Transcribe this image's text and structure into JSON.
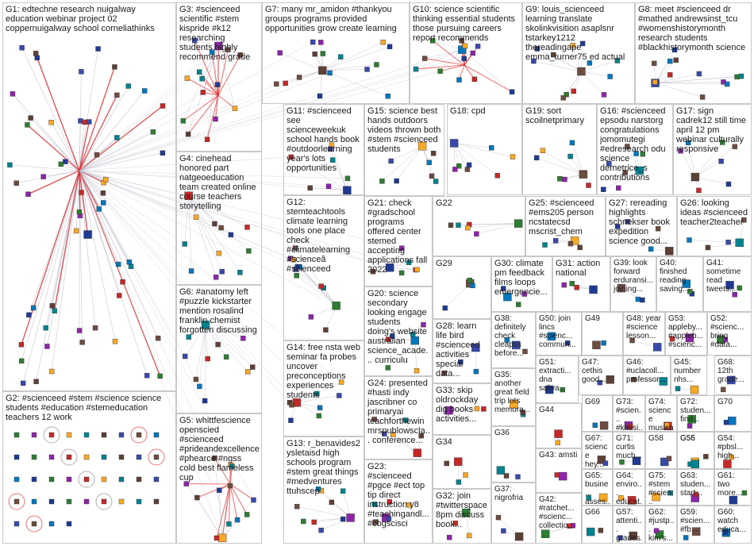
{
  "groups": [
    {
      "id": "G1",
      "text": "G1: edtechne research nuigalway education webinar project 02 coppernuigalway school corneliathinks"
    },
    {
      "id": "G2",
      "text": "G2: #scienceed #stem #science science students #education #stemeducation teachers 12 work"
    },
    {
      "id": "G3",
      "text": "G3: #scienceed scientific #stem kispride #k12 researching students highly recommend grade"
    },
    {
      "id": "G4",
      "text": "G4: cinehead honored part natgeoeducation team created online course teachers storytelling"
    },
    {
      "id": "G5",
      "text": "G5: whittfescience openscied #scienceed #prideandexcellence #phearce #ngss cold best flameless cup"
    },
    {
      "id": "G6",
      "text": "G6: #anatomy left #puzzle kickstarter mention rosalind franklin chemist forgotten discussing"
    },
    {
      "id": "G7",
      "text": "G7: many mr_amidon #thankyou groups programs provided opportunities grow create learning"
    },
    {
      "id": "G8",
      "text": "G8: meet #scienceed dr #mathed andrewsinst_tcu #womenshistorymonth research students #blackhistorymonth science"
    },
    {
      "id": "G9",
      "text": "G9: louis_scienceed learning translate skolinkvisition asaplsnr tstarkey1212 thereadingape emma_turner75 ed actual"
    },
    {
      "id": "G10",
      "text": "G10: science scientific thinking essential students those pursuing careers report recommends"
    },
    {
      "id": "G11",
      "text": "G11: #scienceed see scienceweekuk school hands book #outdoorlearning year's lots opportunities"
    },
    {
      "id": "G12",
      "text": "G12: stemteachtools climate learning tools one place check #climatelearning #scienceâ #scienceed"
    },
    {
      "id": "G13",
      "text": "G13: r_benavides2 ysletaisd high schools program #stem great things #medventures ttuhscep"
    },
    {
      "id": "G14",
      "text": "G14: free nsta web seminar fa probes uncover preconceptions experiences students"
    },
    {
      "id": "G15",
      "text": "G15: science best hands outdoors videos thrown both #stem #scienceed students"
    },
    {
      "id": "G16",
      "text": "G16: #scienceed epsodu narstorg congratulations jomomutegi #edresearch odu science demetrice_s contributions"
    },
    {
      "id": "G17",
      "text": "G17: sign cadrek12 still time april 12 pm webinar culturally responsive"
    },
    {
      "id": "G18",
      "text": "G18: cpd"
    },
    {
      "id": "G19",
      "text": "G19: sort scoilnetprimary"
    },
    {
      "id": "G20",
      "text": "G20: science secondary looking engage students doing's website australian science_acade... curriculu"
    },
    {
      "id": "G21",
      "text": "G21: check #gradschool programs offered center stemed accepting applications fall 2022"
    },
    {
      "id": "G22",
      "text": "G22"
    },
    {
      "id": "G23",
      "text": "G23: #scienceed #pgce #ect top tip direct instruction y8 #teachingandl... #cogscisci"
    },
    {
      "id": "G24",
      "text": "G24: presented #hasti indy jascribner co primaryai teachforthewin mrspublowscla... conference..."
    },
    {
      "id": "G25",
      "text": "G25: #scienceed #ems205 person ncstatecsd mscrist_chem"
    },
    {
      "id": "G26",
      "text": "G26: looking ideas #scienceed teacher2teacher"
    },
    {
      "id": "G27",
      "text": "G27: rereading highlights schnekser book expedition science good..."
    },
    {
      "id": "G28",
      "text": "G28: learn life bird #scienceed activities special data..."
    },
    {
      "id": "G29",
      "text": "G29"
    },
    {
      "id": "G30",
      "text": "G30: climate pm feedback films loops emergencie..."
    },
    {
      "id": "G31",
      "text": "G31: action national"
    },
    {
      "id": "G32",
      "text": "G32: join #twitterspace 8pm discuss book..."
    },
    {
      "id": "G33",
      "text": "G33: skip oldrockday dig books activities..."
    },
    {
      "id": "G34",
      "text": "G34"
    },
    {
      "id": "G35",
      "text": "G35: another great field trip lots memora..."
    },
    {
      "id": "G36",
      "text": "G36"
    },
    {
      "id": "G37",
      "text": "G37: nigrofria"
    },
    {
      "id": "G38",
      "text": "G38: definitely check cleapss before..."
    },
    {
      "id": "G39",
      "text": "G39: look forward erduransi... joining..."
    },
    {
      "id": "G40",
      "text": "G40: finished reading saving..."
    },
    {
      "id": "G41",
      "text": "G41: sometime read tweets..."
    },
    {
      "id": "G42",
      "text": "G42: #ratchet... #scienc... collectio..."
    },
    {
      "id": "G43",
      "text": "G43: amsti"
    },
    {
      "id": "G44",
      "text": "G44"
    },
    {
      "id": "G45",
      "text": "G45: number nhs..."
    },
    {
      "id": "G46",
      "text": "G46: #uclacoll... professor..."
    },
    {
      "id": "G47",
      "text": "G47: cethis good..."
    },
    {
      "id": "G48",
      "text": "G48: year #science lesson..."
    },
    {
      "id": "G49",
      "text": "G49"
    },
    {
      "id": "G50",
      "text": "G50: join lincs #scienc... commun..."
    },
    {
      "id": "G51",
      "text": "G51: extracti... dna saliva..."
    },
    {
      "id": "G52",
      "text": "G52: #scienc... bring #data..."
    },
    {
      "id": "G53",
      "text": "G53: appleby... #appleb... #scienc..."
    },
    {
      "id": "G54",
      "text": "G54: #pbsl... high..."
    },
    {
      "id": "G55",
      "text": "G55"
    },
    {
      "id": "G56",
      "text": "G56"
    },
    {
      "id": "G57",
      "text": "G57: attenti... grades..."
    },
    {
      "id": "G58",
      "text": "G58"
    },
    {
      "id": "G59",
      "text": "G59: #scien... #fb..."
    },
    {
      "id": "G60",
      "text": "G60: watch educa..."
    },
    {
      "id": "G61",
      "text": "G61: two more..."
    },
    {
      "id": "G62",
      "text": "G62: #justp... kim's..."
    },
    {
      "id": "G63",
      "text": "G63: studen... start..."
    },
    {
      "id": "G64",
      "text": "G64: enviro... educat..."
    },
    {
      "id": "G65",
      "text": "G65: busine... asses..."
    },
    {
      "id": "G66",
      "text": "G66"
    },
    {
      "id": "G67",
      "text": "G67: science hey..."
    },
    {
      "id": "G68",
      "text": "G68: 12th grade..."
    },
    {
      "id": "G69",
      "text": "G69"
    },
    {
      "id": "G70",
      "text": "G70"
    },
    {
      "id": "G71",
      "text": "G71: curtis much..."
    },
    {
      "id": "G72",
      "text": "G72: studen... find..."
    },
    {
      "id": "G73",
      "text": "G73: #scien... #kitesi..."
    },
    {
      "id": "G74",
      "text": "G74: science musical"
    },
    {
      "id": "G75",
      "text": "G75: #stem #scien..."
    }
  ],
  "colors": {
    "box_border": "#c8c8c8",
    "edge_default": "#b9b9c8",
    "edge_strong": "#e02020",
    "node_palette": [
      "#1f3a93",
      "#2e7d32",
      "#8e24aa",
      "#c62828",
      "#f9a825",
      "#00838f",
      "#5d4037",
      "#3949ab",
      "#6d4c41",
      "#0277bd"
    ]
  }
}
